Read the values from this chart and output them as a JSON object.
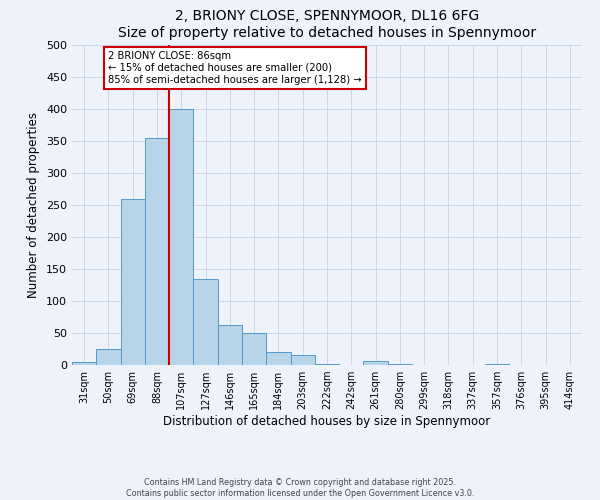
{
  "title": "2, BRIONY CLOSE, SPENNYMOOR, DL16 6FG",
  "subtitle": "Size of property relative to detached houses in Spennymoor",
  "xlabel": "Distribution of detached houses by size in Spennymoor",
  "ylabel": "Number of detached properties",
  "bin_labels": [
    "31sqm",
    "50sqm",
    "69sqm",
    "88sqm",
    "107sqm",
    "127sqm",
    "146sqm",
    "165sqm",
    "184sqm",
    "203sqm",
    "222sqm",
    "242sqm",
    "261sqm",
    "280sqm",
    "299sqm",
    "318sqm",
    "337sqm",
    "357sqm",
    "376sqm",
    "395sqm",
    "414sqm"
  ],
  "bar_values": [
    5,
    25,
    260,
    355,
    400,
    135,
    62,
    50,
    20,
    15,
    2,
    0,
    7,
    2,
    0,
    0,
    0,
    2,
    0,
    0,
    0
  ],
  "bar_color": "#b8d4e8",
  "bar_edge_color": "#5599cc",
  "background_color": "#eef2fa",
  "grid_color": "#c8d0e0",
  "vline_color": "#cc0000",
  "annotation_text": "2 BRIONY CLOSE: 86sqm\n← 15% of detached houses are smaller (200)\n85% of semi-detached houses are larger (1,128) →",
  "annotation_box_color": "#ffffff",
  "annotation_box_edge": "#cc0000",
  "ylim": [
    0,
    500
  ],
  "yticks": [
    0,
    50,
    100,
    150,
    200,
    250,
    300,
    350,
    400,
    450,
    500
  ],
  "footer1": "Contains HM Land Registry data © Crown copyright and database right 2025.",
  "footer2": "Contains public sector information licensed under the Open Government Licence v3.0."
}
